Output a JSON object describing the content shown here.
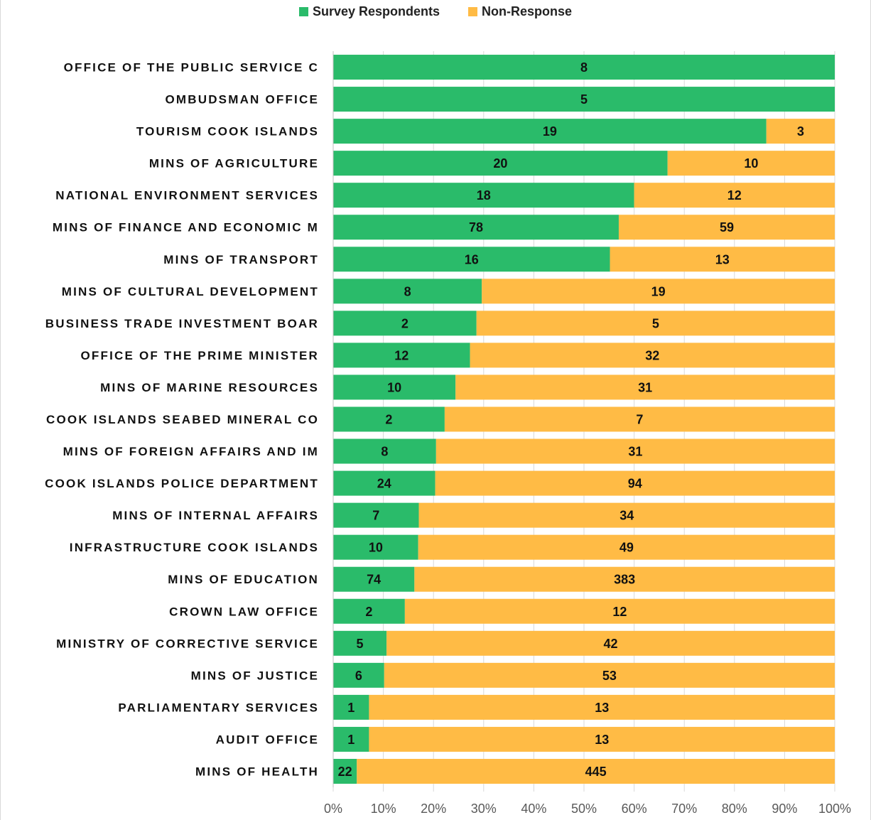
{
  "chart_data": {
    "type": "bar",
    "orientation": "horizontal",
    "stacked": "percent",
    "title": "",
    "xlabel": "",
    "ylabel": "",
    "xlim": [
      0,
      100
    ],
    "x_ticks": [
      "0%",
      "10%",
      "20%",
      "30%",
      "40%",
      "50%",
      "60%",
      "70%",
      "80%",
      "90%",
      "100%"
    ],
    "grid": true,
    "legend_position": "top",
    "categories": [
      "OFFICE OF THE PUBLIC SERVICE C",
      "OMBUDSMAN OFFICE",
      "TOURISM COOK ISLANDS",
      "MINS OF AGRICULTURE",
      "NATIONAL ENVIRONMENT SERVICES",
      "MINS OF FINANCE AND ECONOMIC M",
      "MINS OF TRANSPORT",
      "MINS OF CULTURAL DEVELOPMENT",
      "BUSINESS TRADE INVESTMENT BOAR",
      "OFFICE OF THE PRIME MINISTER",
      "MINS OF MARINE RESOURCES",
      "COOK ISLANDS SEABED MINERAL CO",
      "MINS OF FOREIGN AFFAIRS AND IM",
      "COOK ISLANDS POLICE DEPARTMENT",
      "MINS OF INTERNAL AFFAIRS",
      "INFRASTRUCTURE COOK ISLANDS",
      "MINS OF EDUCATION",
      "CROWN LAW OFFICE",
      "MINISTRY OF CORRECTIVE SERVICE",
      "MINS OF JUSTICE",
      "PARLIAMENTARY SERVICES",
      "AUDIT OFFICE",
      "MINS OF HEALTH"
    ],
    "series": [
      {
        "name": "Survey Respondents",
        "color": "#2abb6a",
        "values": [
          8,
          5,
          19,
          20,
          18,
          78,
          16,
          8,
          2,
          12,
          10,
          2,
          8,
          24,
          7,
          10,
          74,
          2,
          5,
          6,
          1,
          1,
          22
        ]
      },
      {
        "name": "Non-Response",
        "color": "#ffbb45",
        "values": [
          0,
          0,
          3,
          10,
          12,
          59,
          13,
          19,
          5,
          32,
          31,
          7,
          31,
          94,
          34,
          49,
          383,
          12,
          42,
          53,
          13,
          13,
          445
        ]
      }
    ]
  }
}
